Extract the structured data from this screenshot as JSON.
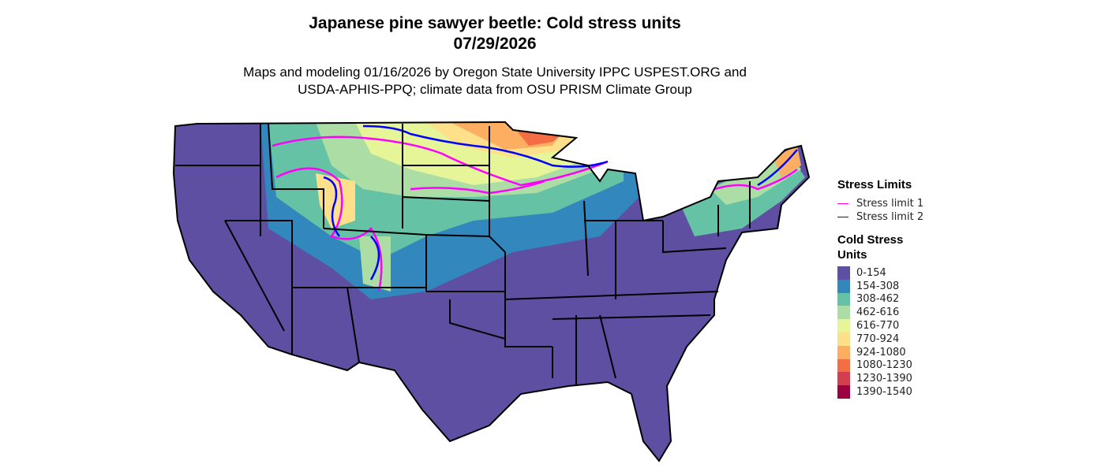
{
  "title_line1": "Japanese pine sawyer beetle: Cold stress units",
  "title_line2": "07/29/2026",
  "subtitle_line1": "Maps and modeling 01/16/2026 by Oregon State University IPPC USPEST.ORG and",
  "subtitle_line2": "USDA-APHIS-PPQ; climate data from OSU PRISM Climate Group",
  "legend": {
    "limits_title": "Stress Limits",
    "limits": [
      {
        "label": "Stress limit 1",
        "color": "#FF00FF"
      },
      {
        "label": "Stress limit 2",
        "color": "#0000FF"
      }
    ],
    "units_title_1": "Cold Stress",
    "units_title_2": "Units",
    "bins": [
      {
        "label": "0-154",
        "color": "#5E4FA2"
      },
      {
        "label": "154-308",
        "color": "#3288BD"
      },
      {
        "label": "308-462",
        "color": "#66C2A5"
      },
      {
        "label": "462-616",
        "color": "#ABDDA4"
      },
      {
        "label": "616-770",
        "color": "#E6F598"
      },
      {
        "label": "770-924",
        "color": "#FEE08B"
      },
      {
        "label": "924-1080",
        "color": "#FDAE61"
      },
      {
        "label": "1080-1230",
        "color": "#F46D43"
      },
      {
        "label": "1230-1390",
        "color": "#D53E4F"
      },
      {
        "label": "1390-1540",
        "color": "#9E0142"
      }
    ]
  }
}
